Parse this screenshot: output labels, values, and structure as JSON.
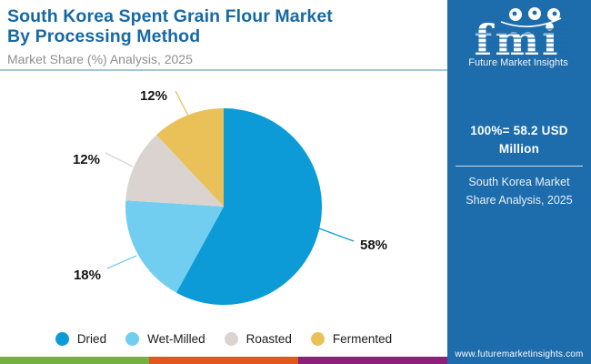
{
  "header": {
    "title_line1": "South Korea Spent Grain Flour Market",
    "title_line2": "By Processing Method",
    "subtitle": "Market Share (%) Analysis, 2025"
  },
  "chart_data": {
    "type": "pie",
    "title": "South Korea Spent Grain Flour Market By Processing Method",
    "subtitle": "Market Share (%) Analysis, 2025",
    "categories": [
      "Dried",
      "Wet-Milled",
      "Roasted",
      "Fermented"
    ],
    "values": [
      58,
      18,
      12,
      12
    ],
    "unit": "%",
    "colors": [
      "#0d9bd7",
      "#72cef0",
      "#dad3cf",
      "#e9c158"
    ],
    "start_angle_deg": 0,
    "direction": "clockwise",
    "legend_position": "bottom",
    "data_labels": [
      "58%",
      "18%",
      "12%",
      "12%"
    ]
  },
  "sidebar": {
    "logo_text": "fmi",
    "logo_tagline": "Future Market Insights",
    "stat_value": "100%= 58.2 USD Million",
    "stat_caption": "South Korea Market Share Analysis, 2025",
    "website": "www.futuremarketinsights.com",
    "bg_color": "#1d6cac"
  },
  "footer_bar": {
    "colors": [
      "#76b043",
      "#e2571d",
      "#8d2077"
    ]
  }
}
